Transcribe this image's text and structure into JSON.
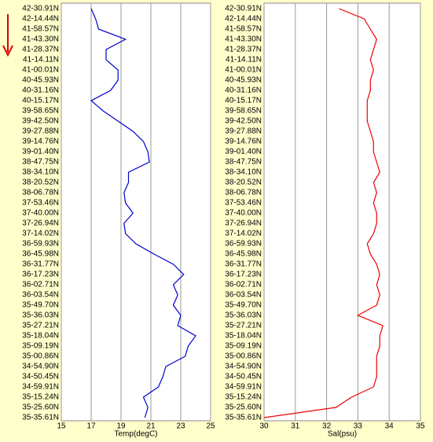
{
  "chart_data": [
    {
      "type": "line",
      "orientation": "horizontal",
      "x_label": "Temp(degC)",
      "categories": [
        "42-30.91N",
        "42-14.44N",
        "41-58.57N",
        "41-43.30N",
        "41-28.37N",
        "41-14.11N",
        "41-00.01N",
        "40-45.93N",
        "40-31.16N",
        "40-15.17N",
        "39-58.65N",
        "39-42.50N",
        "39-27.88N",
        "39-14.76N",
        "39-01.40N",
        "38-47.75N",
        "38-34.10N",
        "38-20.52N",
        "38-06.78N",
        "37-53.46N",
        "37-40.00N",
        "37-26.94N",
        "37-14.02N",
        "36-59.93N",
        "36-45.98N",
        "36-31.77N",
        "36-17.23N",
        "36-02.71N",
        "36-03.54N",
        "35-49.70N",
        "35-36.03N",
        "35-27.21N",
        "35-18.04N",
        "35-09.19N",
        "35-00.86N",
        "34-54.90N",
        "34-50.45N",
        "34-59.91N",
        "35-15.24N",
        "35-25.60N",
        "35-35.61N"
      ],
      "series": [
        {
          "color": "#0000cc",
          "values": [
            17.0,
            17.3,
            17.5,
            19.3,
            18.0,
            18.0,
            18.8,
            18.8,
            18.3,
            17.0,
            17.8,
            18.8,
            19.8,
            20.5,
            20.8,
            20.9,
            19.5,
            19.5,
            19.2,
            19.3,
            19.8,
            19.2,
            19.3,
            20.0,
            21.2,
            22.5,
            23.2,
            22.5,
            22.8,
            22.5,
            23.0,
            22.8,
            24.0,
            23.5,
            23.3,
            22.0,
            21.8,
            21.5,
            20.5,
            20.8,
            20.6
          ]
        }
      ],
      "xlim": [
        15,
        25
      ],
      "xticks": [
        15,
        17,
        19,
        21,
        23,
        25
      ],
      "grid": true
    },
    {
      "type": "line",
      "orientation": "horizontal",
      "x_label": "Sal(psu)",
      "categories": [
        "42-30.91N",
        "42-14.44N",
        "41-58.57N",
        "41-43.30N",
        "41-28.37N",
        "41-14.11N",
        "41-00.01N",
        "40-45.93N",
        "40-31.16N",
        "40-15.17N",
        "39-58.65N",
        "39-42.50N",
        "39-27.88N",
        "39-14.76N",
        "39-01.40N",
        "38-47.75N",
        "38-34.10N",
        "38-20.52N",
        "38-06.78N",
        "37-53.46N",
        "37-40.00N",
        "37-26.94N",
        "37-14.02N",
        "36-59.93N",
        "36-45.98N",
        "36-31.77N",
        "36-17.23N",
        "36-02.71N",
        "36-03.54N",
        "35-49.70N",
        "35-36.03N",
        "35-27.21N",
        "35-18.04N",
        "35-09.19N",
        "35-00.86N",
        "34-54.90N",
        "34-50.45N",
        "34-59.91N",
        "35-15.24N",
        "35-25.60N",
        "35-35.61N"
      ],
      "series": [
        {
          "color": "#ee0000",
          "values": [
            32.4,
            33.2,
            33.4,
            33.6,
            33.5,
            33.4,
            33.5,
            33.4,
            33.4,
            33.3,
            33.3,
            33.3,
            33.4,
            33.5,
            33.5,
            33.6,
            33.7,
            33.5,
            33.6,
            33.5,
            33.6,
            33.6,
            33.5,
            33.3,
            33.4,
            33.6,
            33.7,
            33.6,
            33.7,
            33.6,
            33.0,
            33.8,
            33.7,
            33.7,
            33.6,
            33.6,
            33.6,
            33.5,
            32.8,
            32.3,
            30.0
          ]
        }
      ],
      "xlim": [
        30,
        35
      ],
      "xticks": [
        30,
        31,
        32,
        33,
        34,
        35
      ],
      "grid": true
    }
  ]
}
